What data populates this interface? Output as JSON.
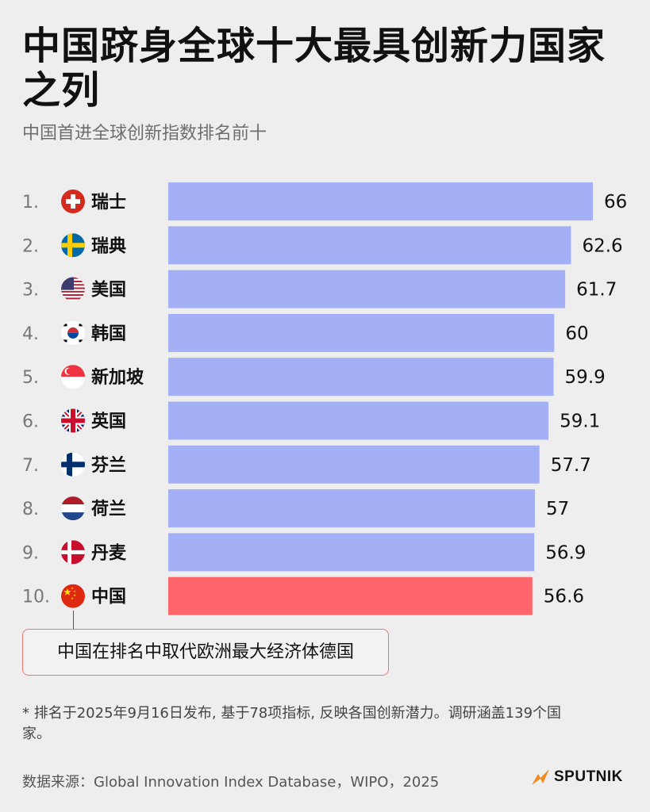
{
  "title": "中国跻身全球十大最具创新力国家之列",
  "subtitle": "中国首进全球创新指数排名前十",
  "callout": "中国在排名中取代欧洲最大经济体德国",
  "note": "* 排名于2025年9月16日发布, 基于78项指标, 反映各国创新潜力。调研涵盖139个国家。",
  "source": "数据来源：Global Innovation Index Database，WIPO，2025",
  "logo_text": "SPUTNIK",
  "colors": {
    "bar": "#a3b0f5",
    "highlight": "#ff666b",
    "background": "#eeeeee"
  },
  "chart_data": {
    "type": "bar",
    "orientation": "horizontal",
    "categories": [
      "瑞士",
      "瑞典",
      "美国",
      "韩国",
      "新加坡",
      "英国",
      "芬兰",
      "荷兰",
      "丹麦",
      "中国"
    ],
    "ranks": [
      "1.",
      "2.",
      "3.",
      "4.",
      "5.",
      "6.",
      "7.",
      "8.",
      "9.",
      "10."
    ],
    "values": [
      66,
      62.6,
      61.7,
      60,
      59.9,
      59.1,
      57.7,
      57,
      56.9,
      56.6
    ],
    "value_labels": [
      "66",
      "62.6",
      "61.7",
      "60",
      "59.9",
      "59.1",
      "57.7",
      "57",
      "56.9",
      "56.6"
    ],
    "flags": [
      "switzerland-flag",
      "sweden-flag",
      "usa-flag",
      "south-korea-flag",
      "singapore-flag",
      "uk-flag",
      "finland-flag",
      "netherlands-flag",
      "denmark-flag",
      "china-flag"
    ],
    "highlight_index": 9
  }
}
